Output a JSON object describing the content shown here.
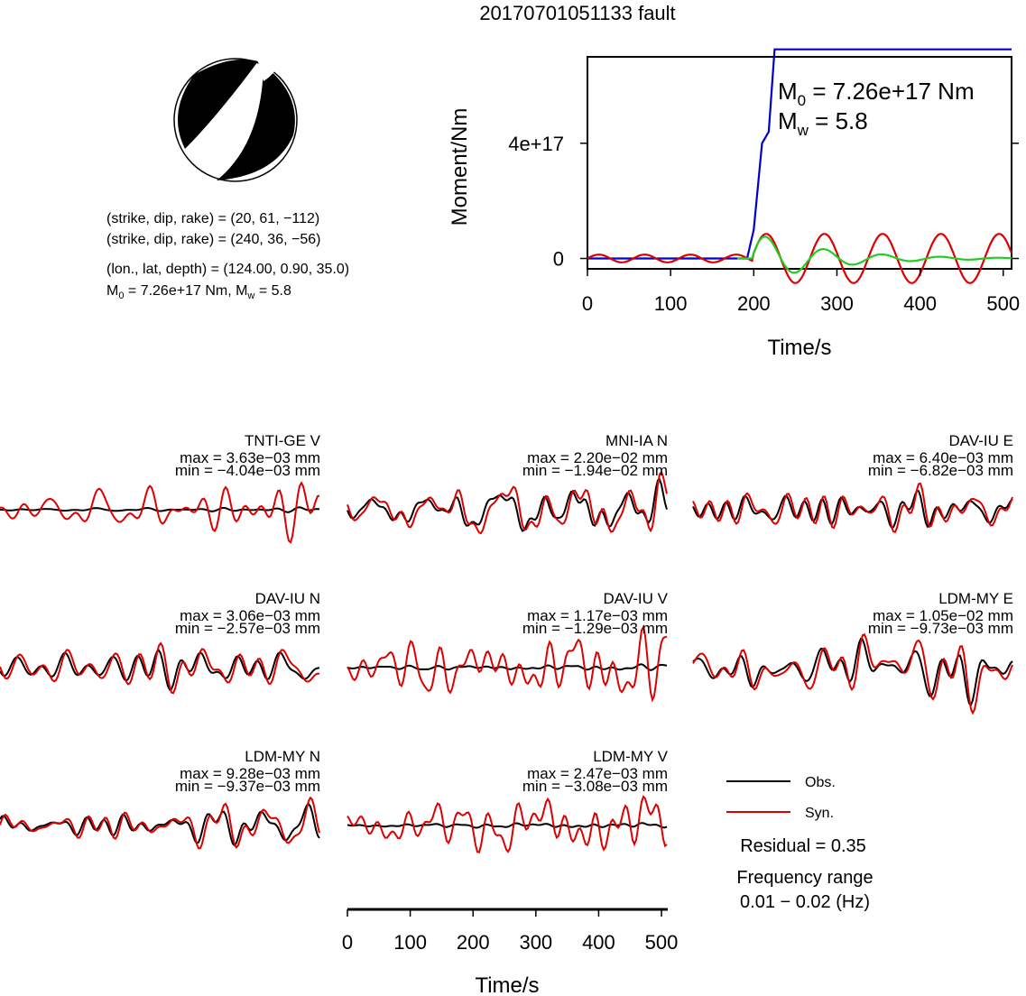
{
  "title": "20170701051133 fault",
  "mechanism": {
    "line1": "(strike, dip, rake) = (20, 61, −112)",
    "line2": "(strike, dip, rake) = (240, 36, −56)",
    "line3": "(lon., lat, depth) = (124.00, 0.90, 35.0)",
    "line4_m0": "M₀ = 7.26e+17 Nm",
    "line4_mw": "Mᵥᵥ = 5.8"
  },
  "moment_annot": {
    "m0": "M₀ = 7.26e+17 Nm",
    "mw": "Mw = 5.8"
  },
  "legend": {
    "obs": "Obs.",
    "syn": "Syn."
  },
  "residual": "Residual = 0.35",
  "freq_label": "Frequency range",
  "freq_value": "0.01 − 0.02 (Hz)",
  "colors": {
    "obs": "#000000",
    "syn": "#dd0000",
    "moment": "#0000cc",
    "green": "#22cc22"
  },
  "chart_data": [
    {
      "type": "line",
      "xlabel": "Time/s",
      "ylabel": "Moment/Nm",
      "xlim": [
        0,
        510
      ],
      "ylim": [
        -3.6e+16,
        7e+17
      ],
      "xticks": [
        "0",
        "100",
        "200",
        "300",
        "400",
        "500"
      ],
      "yticks": [
        "0",
        "4e+17"
      ],
      "series": [
        {
          "kind": "moment",
          "x": [
            0,
            192,
            200,
            210,
            218,
            225,
            232,
            510
          ],
          "y": [
            0,
            0,
            1e+17,
            4e+17,
            4.4e+17,
            7.26e+17,
            7.26e+17,
            7.26e+17
          ]
        },
        {
          "kind": "osc",
          "colorKey": "syn",
          "amp": 9e+16,
          "start": 0,
          "end": 510,
          "t0": 200,
          "dec": 0.0,
          "period": 70,
          "pre": 0.15
        },
        {
          "kind": "osc",
          "colorKey": "green",
          "amp": 9e+16,
          "start": 180,
          "end": 510,
          "t0": 200,
          "dec": 0.012,
          "period": 70,
          "pre": 0.0
        }
      ]
    },
    {
      "type": "line",
      "panels": [
        {
          "station": "TNTI-GE V",
          "max": "max = 3.63e−03 mm",
          "min": "min = −4.04e−03 mm"
        },
        {
          "station": "MNI-IA N",
          "max": "max = 2.20e−02 mm",
          "min": "min = −1.94e−02 mm"
        },
        {
          "station": "DAV-IU E",
          "max": "max = 6.40e−03 mm",
          "min": "min = −6.82e−03 mm"
        },
        {
          "station": "DAV-IU N",
          "max": "max = 3.06e−03 mm",
          "min": "min = −2.57e−03 mm"
        },
        {
          "station": "DAV-IU V",
          "max": "max = 1.17e−03 mm",
          "min": "min = −1.29e−03 mm"
        },
        {
          "station": "LDM-MY E",
          "max": "max = 1.05e−02 mm",
          "min": "min = −9.73e−03 mm"
        },
        {
          "station": "LDM-MY N",
          "max": "max = 9.28e−03 mm",
          "min": "min = −9.37e−03 mm"
        },
        {
          "station": "LDM-MY V",
          "max": "max = 2.47e−03 mm",
          "min": "min = −3.08e−03 mm"
        }
      ],
      "xlabel": "Time/s",
      "xlim": [
        0,
        510
      ],
      "xticks": [
        "0",
        "100",
        "200",
        "300",
        "400",
        "500"
      ]
    }
  ]
}
